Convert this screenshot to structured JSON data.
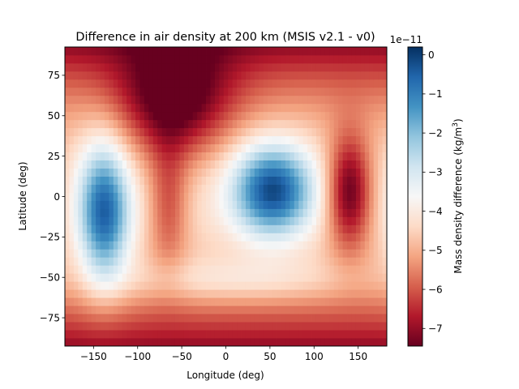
{
  "chart_data": {
    "type": "heatmap",
    "title": "Difference in air density at 200 km (MSIS v2.1 - v0)",
    "xlabel": "Longitude (deg)",
    "ylabel": "Latitude (deg)",
    "xlim": [
      -182.5,
      182.5
    ],
    "ylim": [
      -92.5,
      92.5
    ],
    "x_ticks": [
      -150,
      -100,
      -50,
      0,
      50,
      100,
      150
    ],
    "y_ticks": [
      -75,
      -50,
      -25,
      0,
      25,
      50,
      75
    ],
    "x_tick_labels": [
      "−150",
      "−100",
      "−50",
      "0",
      "50",
      "100",
      "150"
    ],
    "y_tick_labels": [
      "−75",
      "−50",
      "−25",
      "0",
      "25",
      "50",
      "75"
    ],
    "grid_step_deg": 5,
    "field_model": {
      "units_exponent": -11,
      "baseline": -4.3,
      "latitudinal_term": {
        "amplitude": -2.6,
        "power": 2
      },
      "features": [
        {
          "lon": 53,
          "lat": 4,
          "amplitude": 4.2,
          "lon_width": 32,
          "lat_width": 20
        },
        {
          "lon": -138,
          "lat": -10,
          "amplitude": 3.9,
          "lon_width": 20,
          "lat_width": 30
        },
        {
          "lon": 140,
          "lat": 3,
          "amplitude": -3.1,
          "lon_width": 18,
          "lat_width": 25
        },
        {
          "lon": -58,
          "lat": 57,
          "amplitude": -2.6,
          "lon_width": 45,
          "lat_width": 25
        },
        {
          "lon": -65,
          "lat": -5,
          "amplitude": -1.6,
          "lon_width": 16,
          "lat_width": 28
        },
        {
          "lon": 10,
          "lat": -52,
          "amplitude": 1.0,
          "lon_width": 100,
          "lat_width": 10
        }
      ]
    },
    "colorbar": {
      "label": "Mass density difference (kg/m³)",
      "label_main": "Mass density difference (kg/m",
      "label_sup": "3",
      "label_end": ")",
      "min": -7.45,
      "max": 0.2,
      "ticks": [
        0,
        -1,
        -2,
        -3,
        -4,
        -5,
        -6,
        -7
      ],
      "tick_labels": [
        "0",
        "−1",
        "−2",
        "−3",
        "−4",
        "−5",
        "−6",
        "−7"
      ],
      "offset_text": "1e−11",
      "colormap": "RdBu",
      "colormap_stops": [
        "#67001f",
        "#b2182b",
        "#d6604d",
        "#f4a582",
        "#fddbc7",
        "#f7f7f7",
        "#d1e5f0",
        "#92c5de",
        "#4393c3",
        "#2166ac",
        "#053061"
      ]
    }
  }
}
